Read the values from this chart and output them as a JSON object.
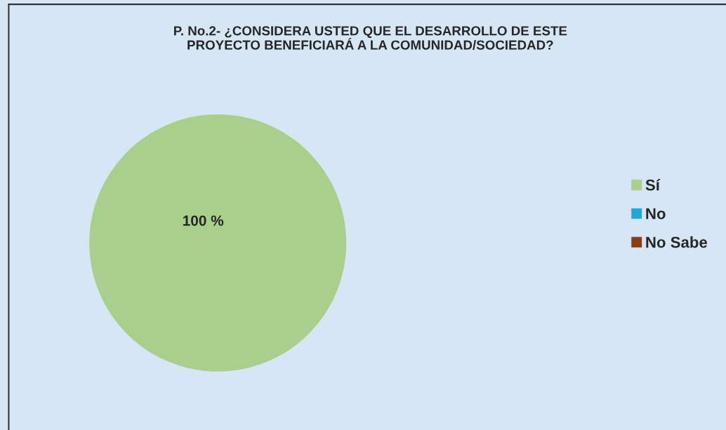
{
  "chart_data": {
    "type": "pie",
    "title": "P. No.2- ¿CONSIDERA USTED QUE EL DESARROLLO DE ESTE\nPROYECTO BENEFICIARÁ A LA COMUNIDAD/SOCIEDAD?",
    "categories": [
      "Sí",
      "No",
      "No Sabe"
    ],
    "values": [
      100,
      0,
      0
    ],
    "colors": [
      "#a9cf8c",
      "#1fa6df",
      "#8b3b17"
    ],
    "value_labels": [
      "100 %",
      null,
      null
    ],
    "legend": "right"
  }
}
